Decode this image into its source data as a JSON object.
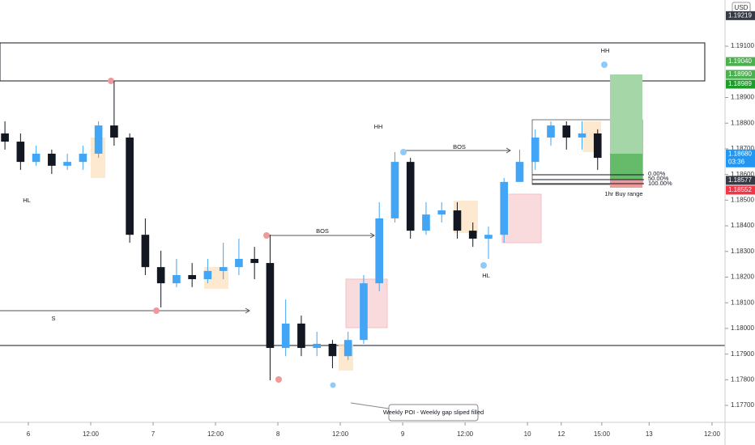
{
  "chart_data": {
    "type": "candlestick",
    "currency": "USD",
    "up_color": "#42a5f5",
    "down_color": "#131722",
    "x": [
      -4.5,
      -1.5,
      1.5,
      4.5,
      7.5,
      10.5,
      13.5,
      16.5,
      19.5,
      22.5,
      25.5,
      28.5,
      31.5,
      34.5,
      37.5,
      40.5,
      43.5,
      46.5,
      49.5,
      52.5,
      55.5,
      58.5,
      61.5,
      64.5,
      67.5,
      70.5,
      73.5,
      76.5,
      79.5,
      82.5,
      85.5,
      88.5,
      91.5,
      94.5,
      97.5,
      100.5,
      103.5,
      106.5,
      109.5
    ],
    "open": [
      1.1876,
      1.18728,
      1.18649,
      1.18681,
      1.18634,
      1.18649,
      1.18681,
      1.18791,
      1.18744,
      1.18365,
      1.18239,
      1.18176,
      1.18208,
      1.18192,
      1.18224,
      1.18239,
      1.18271,
      1.18255,
      1.17924,
      1.18019,
      1.17924,
      1.1794,
      1.17892,
      1.17955,
      1.18176,
      1.18429,
      1.18649,
      1.18381,
      1.18444,
      1.1846,
      1.18381,
      1.1835,
      1.18365,
      1.18571,
      1.18649,
      1.18744,
      1.18791,
      1.18744,
      1.1876
    ],
    "high": [
      1.18807,
      1.1876,
      1.18712,
      1.18697,
      1.18681,
      1.18712,
      1.18807,
      1.18965,
      1.1876,
      1.18429,
      1.18303,
      1.18271,
      1.18255,
      1.18271,
      1.18334,
      1.1835,
      1.18318,
      1.18365,
      1.18113,
      1.1805,
      1.17987,
      1.17955,
      1.17987,
      1.18208,
      1.18492,
      1.18687,
      1.18665,
      1.18492,
      1.18492,
      1.18492,
      1.18413,
      1.18397,
      1.18586,
      1.18697,
      1.18776,
      1.18807,
      1.18807,
      1.18807,
      1.18776
    ],
    "low": [
      1.18697,
      1.18618,
      1.18634,
      1.18602,
      1.18618,
      1.18618,
      1.18665,
      1.18712,
      1.18334,
      1.18208,
      1.18082,
      1.18161,
      1.18161,
      1.18176,
      1.18192,
      1.18208,
      1.18192,
      1.17798,
      1.17892,
      1.17892,
      1.17892,
      1.17845,
      1.17877,
      1.1794,
      1.18145,
      1.18413,
      1.1835,
      1.18365,
      1.18413,
      1.1835,
      1.18318,
      1.18271,
      1.18334,
      1.18571,
      1.18618,
      1.18712,
      1.18697,
      1.18697,
      1.18618
    ],
    "close": [
      1.18728,
      1.18649,
      1.18681,
      1.18634,
      1.18649,
      1.18681,
      1.18791,
      1.18744,
      1.18365,
      1.18239,
      1.18176,
      1.18208,
      1.18192,
      1.18224,
      1.18239,
      1.18271,
      1.18255,
      1.17924,
      1.18019,
      1.17924,
      1.1794,
      1.17892,
      1.17955,
      1.18176,
      1.18429,
      1.18649,
      1.18381,
      1.18444,
      1.1846,
      1.18381,
      1.1835,
      1.18365,
      1.18571,
      1.18649,
      1.18744,
      1.18791,
      1.18744,
      1.1876,
      1.18665
    ],
    "xlim": [
      -5.45,
      134
    ],
    "xticks": [
      {
        "value": 0,
        "label": "6"
      },
      {
        "value": 12,
        "label": "12:00"
      },
      {
        "value": 24,
        "label": "7"
      },
      {
        "value": 36,
        "label": "12:00"
      },
      {
        "value": 48,
        "label": "8"
      },
      {
        "value": 60,
        "label": "12:00"
      },
      {
        "value": 72,
        "label": "9"
      },
      {
        "value": 84,
        "label": "12:00"
      },
      {
        "value": 96,
        "label": "10"
      },
      {
        "value": 102.5,
        "label": "12"
      },
      {
        "value": 110.3,
        "label": "15:00"
      },
      {
        "value": 119.4,
        "label": "13"
      },
      {
        "value": 131.5,
        "label": "12:00"
      }
    ],
    "ylim": [
      1.17634,
      1.1928
    ],
    "yticks": [
      {
        "value": 1.177,
        "label": "1.17700"
      },
      {
        "value": 1.178,
        "label": "1.17800"
      },
      {
        "value": 1.179,
        "label": "1.17900"
      },
      {
        "value": 1.18,
        "label": "1.18000"
      },
      {
        "value": 1.181,
        "label": "1.18100"
      },
      {
        "value": 1.182,
        "label": "1.18200"
      },
      {
        "value": 1.183,
        "label": "1.18300"
      },
      {
        "value": 1.184,
        "label": "1.18400"
      },
      {
        "value": 1.185,
        "label": "1.18500"
      },
      {
        "value": 1.186,
        "label": "1.18600"
      },
      {
        "value": 1.187,
        "label": "1.18700"
      },
      {
        "value": 1.188,
        "label": "1.18800"
      },
      {
        "value": 1.189,
        "label": "1.18900"
      },
      {
        "value": 1.191,
        "label": "1.19100"
      }
    ],
    "price_tags": [
      {
        "value": 1.19219,
        "label": "1.19219",
        "color": "#363a45"
      },
      {
        "value": 1.1904,
        "label": "1.19040",
        "color": "#4caf50"
      },
      {
        "value": 1.1899,
        "label": "1.18990",
        "color": "#4caf50"
      },
      {
        "value": 1.18989,
        "label": "1.18989",
        "color": "#1e9b2a"
      },
      {
        "value": 1.1868,
        "label": "1.18680",
        "color": "#2196f3",
        "sub": "03:36"
      },
      {
        "value": 1.18577,
        "label": "1.18577",
        "color": "#363a45"
      },
      {
        "value": 1.18552,
        "label": "1.18552",
        "color": "#f23645"
      }
    ],
    "annotations": [
      "HL",
      "HH",
      "BOS",
      "S",
      "BOS",
      "HL",
      "HH",
      "1hr Buy range",
      "0.00%",
      "50.00%",
      "100.00%",
      "Weekly POI - Weekly gap sliped filled"
    ]
  }
}
